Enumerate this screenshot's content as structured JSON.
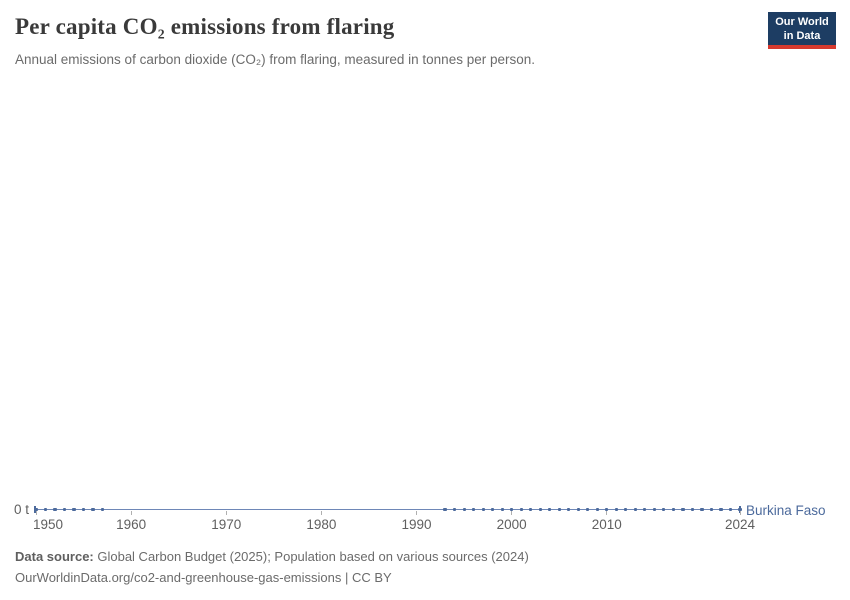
{
  "header": {
    "title": "Per capita CO₂ emissions from flaring",
    "subtitle": "Annual emissions of carbon dioxide (CO₂) from flaring, measured in tonnes per person.",
    "logo": {
      "line1": "Our World",
      "line2": "in Data"
    }
  },
  "chart_data": {
    "type": "line",
    "title": "Per capita CO₂ emissions from flaring",
    "ylabel": "tonnes per person",
    "xlabel": "",
    "grid": false,
    "legend_position": "end-of-line label",
    "x_axis": {
      "min": 1950,
      "max": 2024,
      "tick_years": [
        1950,
        1960,
        1970,
        1980,
        1990,
        2000,
        2010,
        2024
      ],
      "tick_labels": [
        "1950",
        "1960",
        "1970",
        "1980",
        "1990",
        "2000",
        "2010",
        "2024"
      ]
    },
    "y_axis": {
      "min": 0,
      "tick_labels": [
        "0 t"
      ]
    },
    "series": [
      {
        "name": "Burkina Faso",
        "color": "#4c6a9c",
        "x_start": 1950,
        "x_end": 2024,
        "constant_value": 0,
        "unit": "t",
        "marker_year_segments": [
          [
            1950,
            1957
          ],
          [
            1993,
            2024
          ]
        ]
      }
    ]
  },
  "footer": {
    "source_label": "Data source:",
    "source_text": " Global Carbon Budget (2025); Population based on various sources (2024)",
    "link_line": "OurWorldinData.org/co2-and-greenhouse-gas-emissions | CC BY"
  },
  "colors": {
    "accent_blue": "#4c6a9c",
    "line_blue_light": "#6e87b7",
    "logo_navy": "#1d3d63",
    "logo_red": "#d63a2f",
    "tick_gray": "#b0b0b0",
    "text_gray": "#6b6b6b",
    "title_charcoal": "#3a3a3a"
  }
}
